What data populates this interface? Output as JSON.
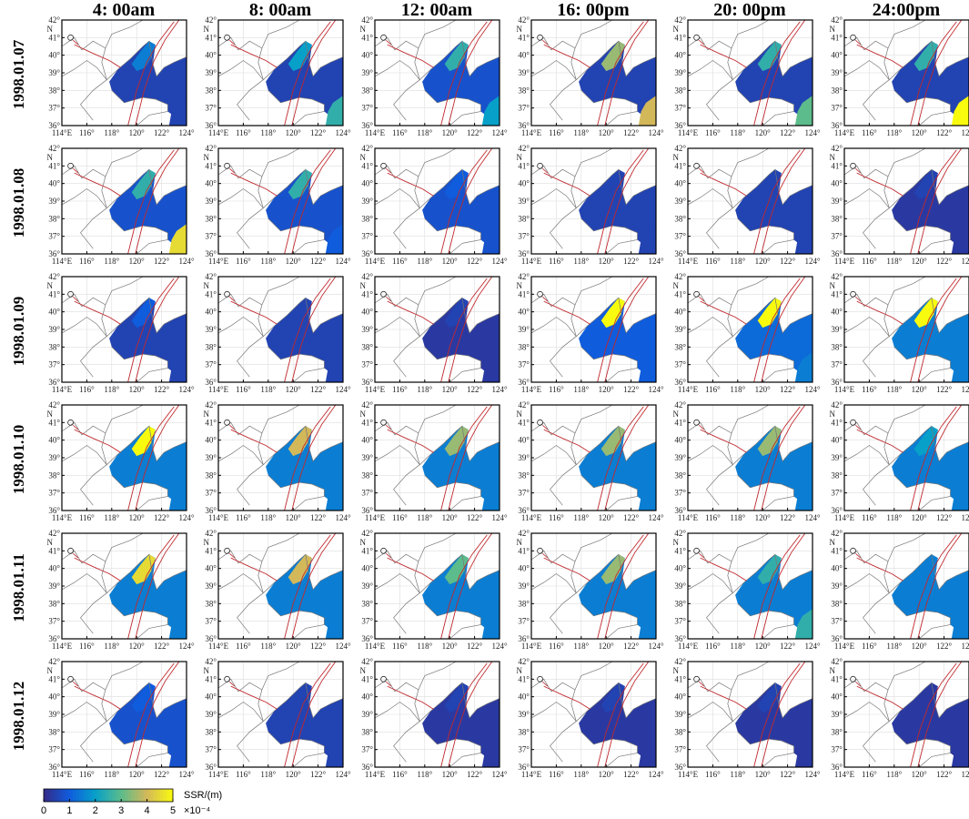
{
  "columns": [
    "4: 00am",
    "8: 00am",
    "12: 00am",
    "16: 00pm",
    "20: 00pm",
    "24:00pm"
  ],
  "rows": [
    "1998.01.07",
    "1998.01.08",
    "1998.01.09",
    "1998.01.10",
    "1998.01.11",
    "1998.01.12"
  ],
  "lat_ticks": [
    {
      "value": 36,
      "label": "36°"
    },
    {
      "value": 37,
      "label": "37°"
    },
    {
      "value": 38,
      "label": "38°"
    },
    {
      "value": 39,
      "label": "39°"
    },
    {
      "value": 40,
      "label": "40°"
    },
    {
      "value": 41,
      "label": "41°"
    },
    {
      "value": 42,
      "label": "42°"
    }
  ],
  "lat_hemisphere": "N",
  "lon_ticks": [
    {
      "value": 114,
      "label": "114°E"
    },
    {
      "value": 116,
      "label": "116°"
    },
    {
      "value": 118,
      "label": "118°"
    },
    {
      "value": 120,
      "label": "120°"
    },
    {
      "value": 122,
      "label": "122°"
    },
    {
      "value": 124,
      "label": "124°"
    }
  ],
  "panels": [
    [
      [
        1.5,
        0.5,
        0.5
      ],
      [
        2,
        0.5,
        2.5
      ],
      [
        2.5,
        0.8,
        2
      ],
      [
        3.5,
        0.5,
        4
      ],
      [
        2.5,
        0.5,
        3
      ],
      [
        2.5,
        0.5,
        5
      ]
    ],
    [
      [
        2.5,
        0.8,
        4.5
      ],
      [
        2.5,
        0.8,
        1
      ],
      [
        1,
        0.8,
        0.8
      ],
      [
        0.5,
        0.5,
        0.5
      ],
      [
        0.5,
        0.5,
        0.5
      ],
      [
        0.5,
        0.3,
        0.3
      ]
    ],
    [
      [
        1,
        0.5,
        0.5
      ],
      [
        0.5,
        0.5,
        0.5
      ],
      [
        0.5,
        0.3,
        0.3
      ],
      [
        5,
        1,
        1
      ],
      [
        5,
        1.2,
        1.5
      ],
      [
        5,
        1.5,
        1.5
      ]
    ],
    [
      [
        5,
        1.5,
        1.5
      ],
      [
        4,
        1.5,
        1.5
      ],
      [
        3.5,
        1.5,
        1.5
      ],
      [
        3.5,
        1.5,
        1.5
      ],
      [
        3.5,
        1.5,
        1.5
      ],
      [
        2,
        1.5,
        1.5
      ]
    ],
    [
      [
        4.5,
        1.5,
        1.5
      ],
      [
        4,
        1.5,
        1.5
      ],
      [
        3,
        1.5,
        1.5
      ],
      [
        3.5,
        1.5,
        1.5
      ],
      [
        2.5,
        1.5,
        2.5
      ],
      [
        1.5,
        1.5,
        1.5
      ]
    ],
    [
      [
        1,
        0.8,
        0.8
      ],
      [
        0.5,
        0.5,
        0.5
      ],
      [
        0.5,
        0.3,
        0.3
      ],
      [
        0.5,
        0.3,
        0.3
      ],
      [
        0.5,
        0.3,
        0.3
      ],
      [
        0.3,
        0.3,
        0.3
      ]
    ]
  ],
  "colorbar": {
    "label": "SSR/(m)",
    "unit": "×10⁻⁴",
    "lim": [
      0,
      5
    ],
    "ticks": [
      0,
      1,
      2,
      3,
      4,
      5
    ],
    "colors": [
      "#352a87",
      "#0f5cdd",
      "#07a0c9",
      "#5cbc8b",
      "#d3b85a",
      "#f9fb0e"
    ]
  }
}
